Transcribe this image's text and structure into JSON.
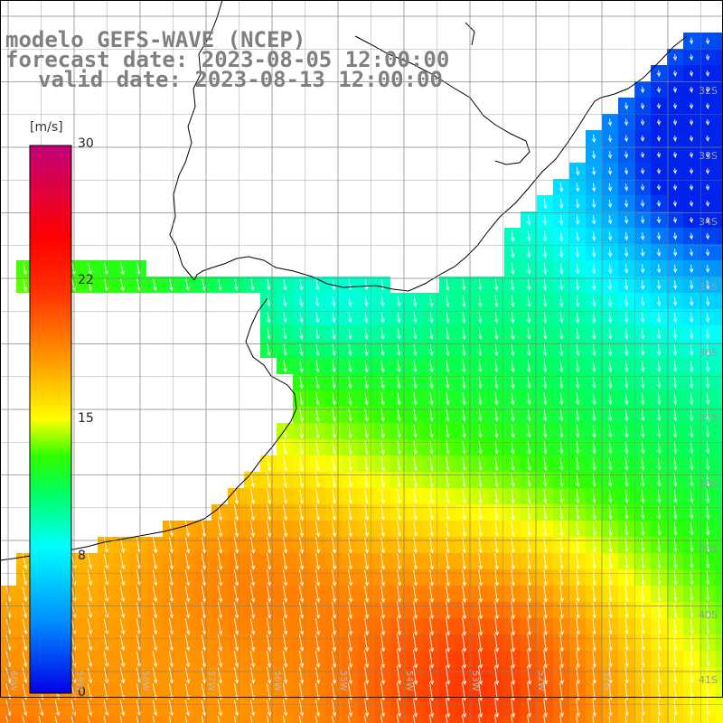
{
  "title": {
    "model": "modelo GEFS-WAVE (NCEP)",
    "forecast": "forecast date: 2023-08-05 12:00:00",
    "valid": "valid date: 2023-08-13 12:00:00"
  },
  "colorbar": {
    "unit": "[m/s]",
    "ticks": [
      "30",
      "22",
      "15",
      "8",
      "0"
    ],
    "tick_values": [
      30,
      22,
      15,
      8,
      0
    ],
    "stops": [
      {
        "v": 0,
        "c": "#0000e6"
      },
      {
        "v": 4,
        "c": "#0090ff"
      },
      {
        "v": 8,
        "c": "#00ffff"
      },
      {
        "v": 11,
        "c": "#00ff60"
      },
      {
        "v": 13,
        "c": "#30ff00"
      },
      {
        "v": 15,
        "c": "#ffff00"
      },
      {
        "v": 18,
        "c": "#ffa000"
      },
      {
        "v": 22,
        "c": "#ff3000"
      },
      {
        "v": 25,
        "c": "#ff0000"
      },
      {
        "v": 30,
        "c": "#c0007a"
      }
    ]
  },
  "latitudes": [
    "32S",
    "33S",
    "34S",
    "35S",
    "36S",
    "37S",
    "38S",
    "39S",
    "40S",
    "41S"
  ],
  "longitudes": [
    "60W",
    "59W",
    "58W",
    "57W",
    "56W",
    "55W",
    "54W",
    "53W",
    "52W",
    "51W"
  ],
  "colors": {
    "land": "#ffffff",
    "coast": "#000000",
    "grid": "#808080",
    "arrows": "#ffffff",
    "title": "#808080"
  }
}
